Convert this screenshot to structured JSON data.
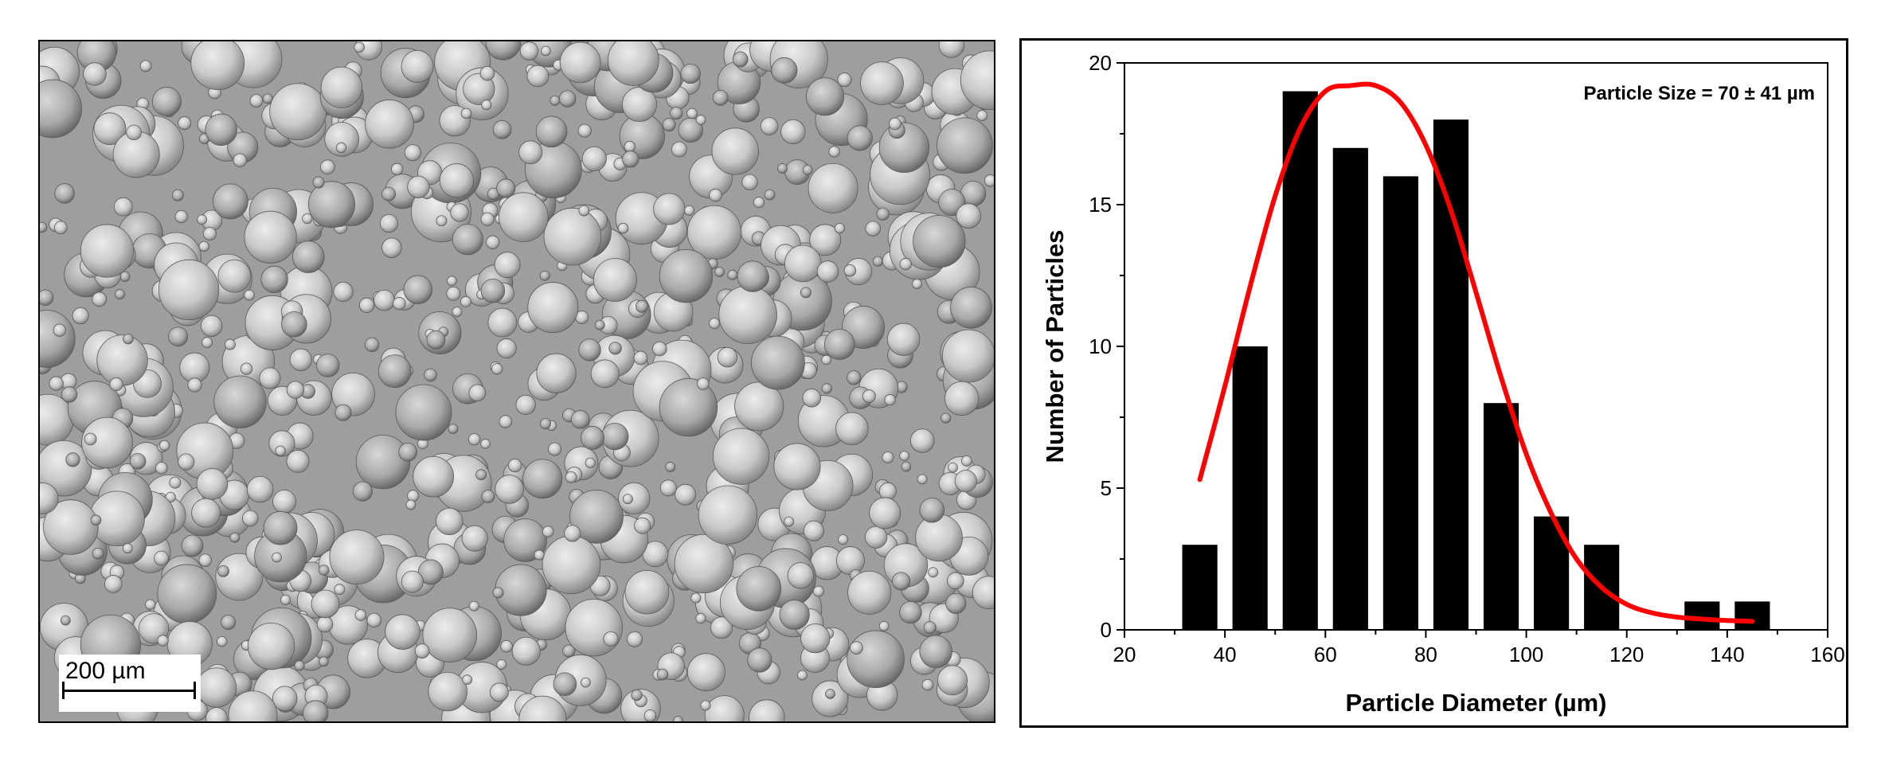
{
  "sem_image": {
    "scale_bar_label": "200 µm",
    "scale_bar_um": 200
  },
  "chart_data": {
    "type": "bar",
    "title": "",
    "xlabel": "Particle Diameter (µm)",
    "ylabel": "Number of Particles",
    "annotation": "Particle Size = 70 ± 41 µm",
    "xlim": [
      20,
      160
    ],
    "ylim": [
      0,
      20
    ],
    "xticks": [
      20,
      40,
      60,
      80,
      100,
      120,
      140,
      160
    ],
    "yticks": [
      0,
      5,
      10,
      15,
      20
    ],
    "bars": [
      {
        "center": 35,
        "count": 3
      },
      {
        "center": 45,
        "count": 10
      },
      {
        "center": 55,
        "count": 19
      },
      {
        "center": 65,
        "count": 17
      },
      {
        "center": 75,
        "count": 16
      },
      {
        "center": 85,
        "count": 18
      },
      {
        "center": 95,
        "count": 8
      },
      {
        "center": 105,
        "count": 4
      },
      {
        "center": 115,
        "count": 3
      },
      {
        "center": 125,
        "count": 0
      },
      {
        "center": 135,
        "count": 1
      },
      {
        "center": 145,
        "count": 1
      }
    ],
    "bar_width_um": 7,
    "bar_color": "#000000",
    "fit_curve": {
      "type": "gaussian",
      "color": "#ff0000",
      "points": [
        [
          35,
          5.3
        ],
        [
          40,
          8.6
        ],
        [
          45,
          12.1
        ],
        [
          50,
          15.3
        ],
        [
          55,
          17.7
        ],
        [
          60,
          19.0
        ],
        [
          65,
          19.2
        ],
        [
          70,
          19.2
        ],
        [
          75,
          18.6
        ],
        [
          80,
          17.1
        ],
        [
          85,
          14.8
        ],
        [
          90,
          11.9
        ],
        [
          95,
          8.9
        ],
        [
          100,
          6.2
        ],
        [
          105,
          4.1
        ],
        [
          110,
          2.5
        ],
        [
          115,
          1.5
        ],
        [
          120,
          0.9
        ],
        [
          125,
          0.6
        ],
        [
          130,
          0.45
        ],
        [
          135,
          0.38
        ],
        [
          140,
          0.33
        ],
        [
          145,
          0.3
        ]
      ]
    }
  }
}
